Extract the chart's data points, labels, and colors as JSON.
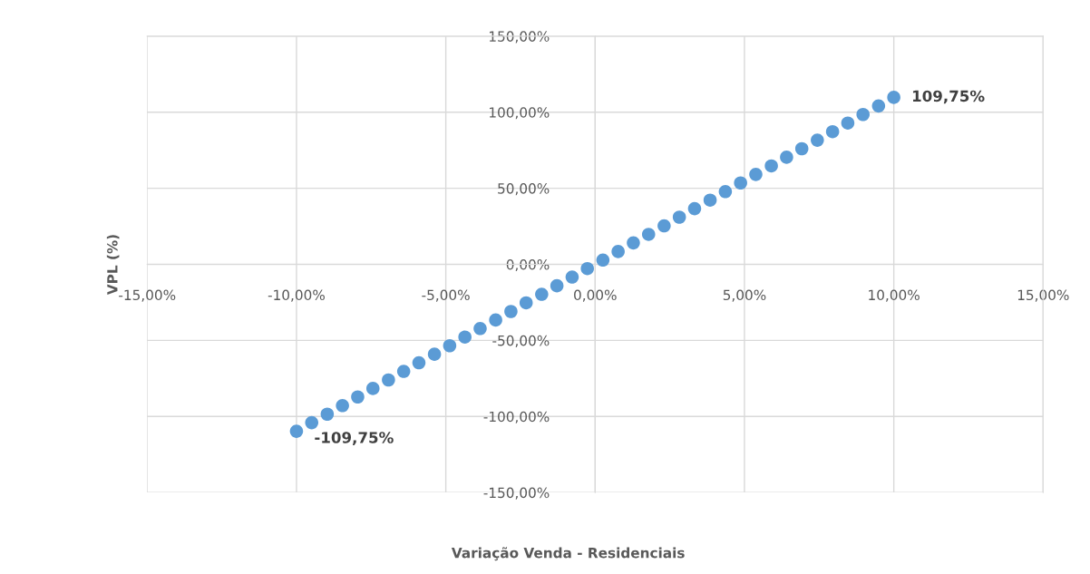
{
  "chart_data": {
    "type": "scatter",
    "xlabel": "Variação Venda - Residenciais",
    "ylabel": "VPL (%)",
    "x": [
      -10,
      -9.49,
      -8.97,
      -8.46,
      -7.95,
      -7.44,
      -6.92,
      -6.41,
      -5.9,
      -5.38,
      -4.87,
      -4.36,
      -3.85,
      -3.33,
      -2.82,
      -2.31,
      -1.79,
      -1.28,
      -0.77,
      -0.26,
      0.26,
      0.77,
      1.28,
      1.79,
      2.31,
      2.82,
      3.33,
      3.85,
      4.36,
      4.87,
      5.38,
      5.9,
      6.41,
      6.92,
      7.44,
      7.95,
      8.46,
      8.97,
      9.49,
      10
    ],
    "series": [
      {
        "color": "#5b9bd5",
        "values": [
          -109.75,
          -104.1,
          -98.5,
          -92.9,
          -87.2,
          -81.6,
          -76.0,
          -70.4,
          -64.7,
          -59.1,
          -53.5,
          -47.8,
          -42.2,
          -36.6,
          -31.0,
          -25.3,
          -19.7,
          -14.1,
          -8.4,
          -2.8,
          2.8,
          8.4,
          14.1,
          19.7,
          25.3,
          31.0,
          36.6,
          42.2,
          47.8,
          53.5,
          59.1,
          64.7,
          70.4,
          76.0,
          81.6,
          87.2,
          92.9,
          98.5,
          104.1,
          109.75
        ]
      }
    ],
    "annotations": [
      {
        "text": "109,75%",
        "x": 10,
        "y": 109.75
      },
      {
        "text": "-109,75%",
        "x": -10,
        "y": -109.75
      }
    ],
    "xlim": [
      -15,
      15
    ],
    "ylim": [
      -150,
      150
    ],
    "xticks": [
      {
        "value": -15,
        "label": "-15,00%"
      },
      {
        "value": -10,
        "label": "-10,00%"
      },
      {
        "value": -5,
        "label": "-5,00%"
      },
      {
        "value": 0,
        "label": "0,00%"
      },
      {
        "value": 5,
        "label": "5,00%"
      },
      {
        "value": 10,
        "label": "10,00%"
      },
      {
        "value": 15,
        "label": "15,00%"
      }
    ],
    "yticks": [
      {
        "value": -150,
        "label": "-150,00%"
      },
      {
        "value": -100,
        "label": "-100,00%"
      },
      {
        "value": -50,
        "label": "-50,00%"
      },
      {
        "value": 0,
        "label": "0,00%"
      },
      {
        "value": 50,
        "label": "50,00%"
      },
      {
        "value": 100,
        "label": "100,00%"
      },
      {
        "value": 150,
        "label": "150,00%"
      }
    ],
    "grid": true,
    "marker": "circle",
    "legend": false
  }
}
